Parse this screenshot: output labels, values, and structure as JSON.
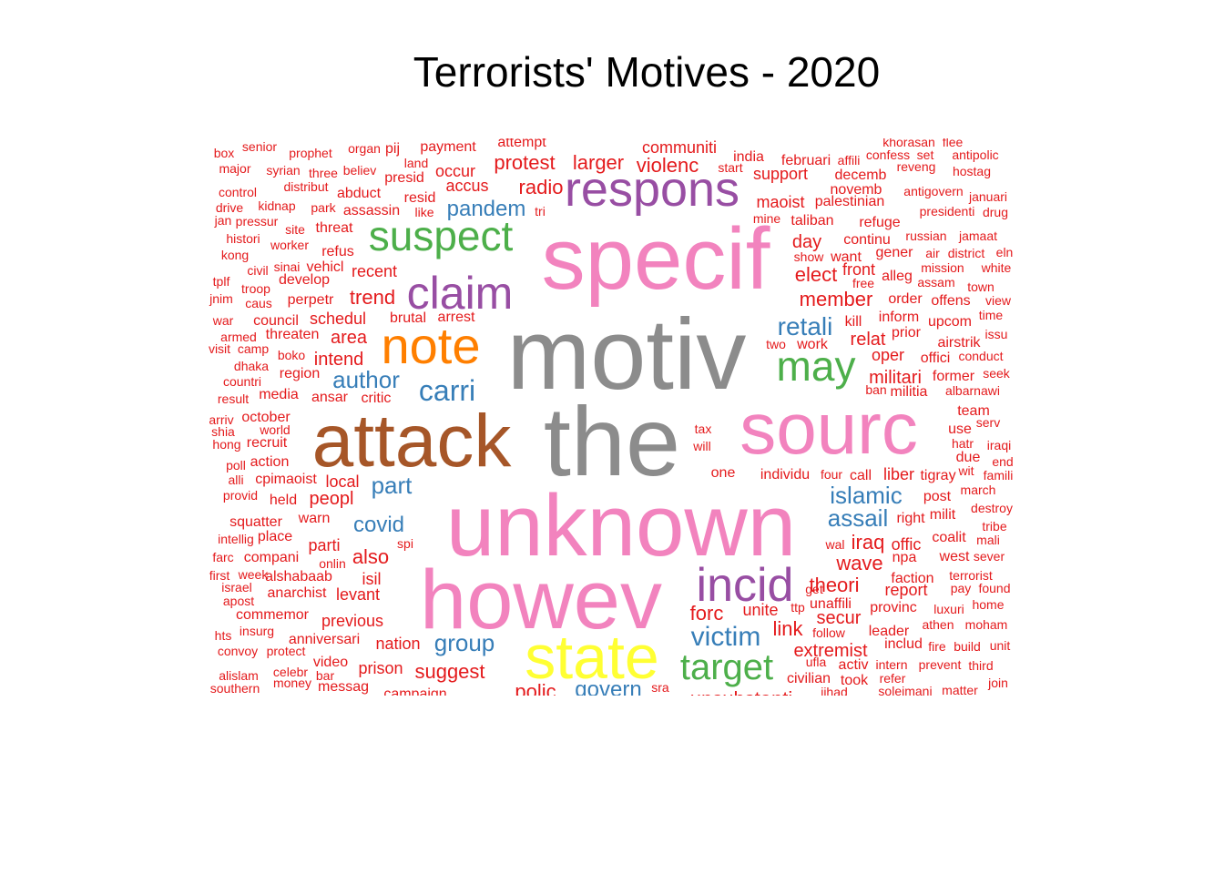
{
  "chart_data": {
    "type": "wordcloud",
    "title": "Terrorists' Motives - 2020",
    "palette": {
      "gray": "#8c8c8c",
      "pink": "#f283be",
      "brown": "#a65628",
      "purple": "#984ea3",
      "green": "#4daf4a",
      "orange": "#ff7f00",
      "blue": "#377eb8",
      "yellow": "#ffff33",
      "red": "#e41a1c"
    },
    "words": [
      {
        "text": "motiv",
        "color": "gray"
      },
      {
        "text": "the",
        "color": "gray"
      },
      {
        "text": "unknown",
        "color": "pink"
      },
      {
        "text": "specif",
        "color": "pink"
      },
      {
        "text": "howev",
        "color": "pink"
      },
      {
        "text": "sourc",
        "color": "pink"
      },
      {
        "text": "attack",
        "color": "brown"
      },
      {
        "text": "state",
        "color": "yellow"
      },
      {
        "text": "respons",
        "color": "purple"
      },
      {
        "text": "claim",
        "color": "purple"
      },
      {
        "text": "incid",
        "color": "purple"
      },
      {
        "text": "suspect",
        "color": "green"
      },
      {
        "text": "may",
        "color": "green"
      },
      {
        "text": "target",
        "color": "green"
      },
      {
        "text": "note",
        "color": "orange"
      },
      {
        "text": "victim",
        "color": "blue"
      },
      {
        "text": "carri",
        "color": "blue"
      },
      {
        "text": "author",
        "color": "blue"
      },
      {
        "text": "retali",
        "color": "blue"
      },
      {
        "text": "islamic",
        "color": "blue"
      },
      {
        "text": "assail",
        "color": "blue"
      },
      {
        "text": "group",
        "color": "blue"
      },
      {
        "text": "pandem",
        "color": "blue"
      },
      {
        "text": "part",
        "color": "blue"
      },
      {
        "text": "covid",
        "color": "blue"
      },
      {
        "text": "govern",
        "color": "blue"
      },
      {
        "text": "protest",
        "color": "red"
      },
      {
        "text": "larger",
        "color": "red"
      },
      {
        "text": "violenc",
        "color": "red"
      },
      {
        "text": "radio",
        "color": "red"
      },
      {
        "text": "trend",
        "color": "red"
      },
      {
        "text": "member",
        "color": "red"
      },
      {
        "text": "elect",
        "color": "red"
      },
      {
        "text": "day",
        "color": "red"
      },
      {
        "text": "militari",
        "color": "red"
      },
      {
        "text": "relat",
        "color": "red"
      },
      {
        "text": "iraq",
        "color": "red"
      },
      {
        "text": "wave",
        "color": "red"
      },
      {
        "text": "theori",
        "color": "red"
      },
      {
        "text": "forc",
        "color": "red"
      },
      {
        "text": "link",
        "color": "red"
      },
      {
        "text": "secur",
        "color": "red"
      },
      {
        "text": "extremist",
        "color": "red"
      },
      {
        "text": "suggest",
        "color": "red"
      },
      {
        "text": "peopl",
        "color": "red"
      },
      {
        "text": "also",
        "color": "red"
      },
      {
        "text": "area",
        "color": "red"
      },
      {
        "text": "intend",
        "color": "red"
      },
      {
        "text": "schedul",
        "color": "red"
      },
      {
        "text": "recent",
        "color": "red"
      },
      {
        "text": "previous",
        "color": "red"
      },
      {
        "text": "parti",
        "color": "red"
      },
      {
        "text": "isil",
        "color": "red"
      },
      {
        "text": "levant",
        "color": "red"
      },
      {
        "text": "local",
        "color": "red"
      },
      {
        "text": "nation",
        "color": "red"
      },
      {
        "text": "prison",
        "color": "red"
      },
      {
        "text": "occur",
        "color": "red"
      },
      {
        "text": "accus",
        "color": "red"
      },
      {
        "text": "support",
        "color": "red"
      },
      {
        "text": "maoist",
        "color": "red"
      },
      {
        "text": "palestinian",
        "color": "red"
      },
      {
        "text": "taliban",
        "color": "red"
      },
      {
        "text": "continu",
        "color": "red"
      },
      {
        "text": "front",
        "color": "red"
      },
      {
        "text": "kill",
        "color": "red"
      },
      {
        "text": "inform",
        "color": "red"
      },
      {
        "text": "oper",
        "color": "red"
      },
      {
        "text": "liber",
        "color": "red"
      },
      {
        "text": "offic",
        "color": "red"
      },
      {
        "text": "npa",
        "color": "red"
      },
      {
        "text": "faction",
        "color": "red"
      },
      {
        "text": "report",
        "color": "red"
      },
      {
        "text": "provinc",
        "color": "red"
      },
      {
        "text": "leader",
        "color": "red"
      },
      {
        "text": "includ",
        "color": "red"
      },
      {
        "text": "unaffili",
        "color": "red"
      },
      {
        "text": "civilian",
        "color": "red"
      },
      {
        "text": "took",
        "color": "red"
      },
      {
        "text": "activ",
        "color": "red"
      },
      {
        "text": "unite",
        "color": "red"
      },
      {
        "text": "individu",
        "color": "red"
      },
      {
        "text": "call",
        "color": "red"
      },
      {
        "text": "tigray",
        "color": "red"
      },
      {
        "text": "post",
        "color": "red"
      },
      {
        "text": "right",
        "color": "red"
      },
      {
        "text": "milit",
        "color": "red"
      },
      {
        "text": "coalit",
        "color": "red"
      },
      {
        "text": "west",
        "color": "red"
      },
      {
        "text": "communiti",
        "color": "red"
      },
      {
        "text": "india",
        "color": "red"
      },
      {
        "text": "februari",
        "color": "red"
      },
      {
        "text": "decemb",
        "color": "red"
      },
      {
        "text": "novemb",
        "color": "red"
      },
      {
        "text": "refuge",
        "color": "red"
      },
      {
        "text": "want",
        "color": "red"
      },
      {
        "text": "gener",
        "color": "red"
      },
      {
        "text": "alleg",
        "color": "red"
      },
      {
        "text": "order",
        "color": "red"
      },
      {
        "text": "offens",
        "color": "red"
      },
      {
        "text": "upcom",
        "color": "red"
      },
      {
        "text": "prior",
        "color": "red"
      },
      {
        "text": "airstrik",
        "color": "red"
      },
      {
        "text": "offici",
        "color": "red"
      },
      {
        "text": "former",
        "color": "red"
      },
      {
        "text": "militia",
        "color": "red"
      },
      {
        "text": "team",
        "color": "red"
      },
      {
        "text": "use",
        "color": "red"
      },
      {
        "text": "due",
        "color": "red"
      },
      {
        "text": "march",
        "color": "red"
      },
      {
        "text": "terrorist",
        "color": "red"
      },
      {
        "text": "pay",
        "color": "red"
      },
      {
        "text": "found",
        "color": "red"
      },
      {
        "text": "home",
        "color": "red"
      },
      {
        "text": "moham",
        "color": "red"
      },
      {
        "text": "athen",
        "color": "red"
      },
      {
        "text": "fire",
        "color": "red"
      },
      {
        "text": "build",
        "color": "red"
      },
      {
        "text": "unit",
        "color": "red"
      },
      {
        "text": "prevent",
        "color": "red"
      },
      {
        "text": "third",
        "color": "red"
      },
      {
        "text": "intern",
        "color": "red"
      },
      {
        "text": "refer",
        "color": "red"
      },
      {
        "text": "soleimani",
        "color": "red"
      },
      {
        "text": "matter",
        "color": "red"
      },
      {
        "text": "join",
        "color": "red"
      },
      {
        "text": "jihad",
        "color": "red"
      },
      {
        "text": "unsubstanti",
        "color": "red"
      },
      {
        "text": "polic",
        "color": "red"
      },
      {
        "text": "sra",
        "color": "red"
      },
      {
        "text": "ufla",
        "color": "red"
      },
      {
        "text": "follow",
        "color": "red"
      },
      {
        "text": "ttp",
        "color": "red"
      },
      {
        "text": "get",
        "color": "red"
      },
      {
        "text": "wal",
        "color": "red"
      },
      {
        "text": "four",
        "color": "red"
      },
      {
        "text": "one",
        "color": "red"
      },
      {
        "text": "tax",
        "color": "red"
      },
      {
        "text": "will",
        "color": "red"
      },
      {
        "text": "two",
        "color": "red"
      },
      {
        "text": "work",
        "color": "red"
      },
      {
        "text": "show",
        "color": "red"
      },
      {
        "text": "free",
        "color": "red"
      },
      {
        "text": "mine",
        "color": "red"
      },
      {
        "text": "start",
        "color": "red"
      },
      {
        "text": "payment",
        "color": "red"
      },
      {
        "text": "attempt",
        "color": "red"
      },
      {
        "text": "land",
        "color": "red"
      },
      {
        "text": "presid",
        "color": "red"
      },
      {
        "text": "resid",
        "color": "red"
      },
      {
        "text": "like",
        "color": "red"
      },
      {
        "text": "abduct",
        "color": "red"
      },
      {
        "text": "assassin",
        "color": "red"
      },
      {
        "text": "threat",
        "color": "red"
      },
      {
        "text": "refus",
        "color": "red"
      },
      {
        "text": "vehicl",
        "color": "red"
      },
      {
        "text": "develop",
        "color": "red"
      },
      {
        "text": "perpetr",
        "color": "red"
      },
      {
        "text": "brutal",
        "color": "red"
      },
      {
        "text": "arrest",
        "color": "red"
      },
      {
        "text": "council",
        "color": "red"
      },
      {
        "text": "threaten",
        "color": "red"
      },
      {
        "text": "boko",
        "color": "red"
      },
      {
        "text": "region",
        "color": "red"
      },
      {
        "text": "ansar",
        "color": "red"
      },
      {
        "text": "critic",
        "color": "red"
      },
      {
        "text": "media",
        "color": "red"
      },
      {
        "text": "october",
        "color": "red"
      },
      {
        "text": "world",
        "color": "red"
      },
      {
        "text": "recruit",
        "color": "red"
      },
      {
        "text": "action",
        "color": "red"
      },
      {
        "text": "cpimaoist",
        "color": "red"
      },
      {
        "text": "held",
        "color": "red"
      },
      {
        "text": "warn",
        "color": "red"
      },
      {
        "text": "squatter",
        "color": "red"
      },
      {
        "text": "place",
        "color": "red"
      },
      {
        "text": "compani",
        "color": "red"
      },
      {
        "text": "spi",
        "color": "red"
      },
      {
        "text": "onlin",
        "color": "red"
      },
      {
        "text": "alshabaab",
        "color": "red"
      },
      {
        "text": "anarchist",
        "color": "red"
      },
      {
        "text": "commemor",
        "color": "red"
      },
      {
        "text": "insurg",
        "color": "red"
      },
      {
        "text": "anniversari",
        "color": "red"
      },
      {
        "text": "protect",
        "color": "red"
      },
      {
        "text": "video",
        "color": "red"
      },
      {
        "text": "celebr",
        "color": "red"
      },
      {
        "text": "bar",
        "color": "red"
      },
      {
        "text": "money",
        "color": "red"
      },
      {
        "text": "messag",
        "color": "red"
      },
      {
        "text": "campaign",
        "color": "red"
      },
      {
        "text": "box",
        "color": "red"
      },
      {
        "text": "senior",
        "color": "red"
      },
      {
        "text": "prophet",
        "color": "red"
      },
      {
        "text": "organ",
        "color": "red"
      },
      {
        "text": "pij",
        "color": "red"
      },
      {
        "text": "major",
        "color": "red"
      },
      {
        "text": "syrian",
        "color": "red"
      },
      {
        "text": "three",
        "color": "red"
      },
      {
        "text": "believ",
        "color": "red"
      },
      {
        "text": "distribut",
        "color": "red"
      },
      {
        "text": "control",
        "color": "red"
      },
      {
        "text": "drive",
        "color": "red"
      },
      {
        "text": "kidnap",
        "color": "red"
      },
      {
        "text": "park",
        "color": "red"
      },
      {
        "text": "jan",
        "color": "red"
      },
      {
        "text": "pressur",
        "color": "red"
      },
      {
        "text": "site",
        "color": "red"
      },
      {
        "text": "histori",
        "color": "red"
      },
      {
        "text": "worker",
        "color": "red"
      },
      {
        "text": "kong",
        "color": "red"
      },
      {
        "text": "civil",
        "color": "red"
      },
      {
        "text": "sinai",
        "color": "red"
      },
      {
        "text": "tplf",
        "color": "red"
      },
      {
        "text": "troop",
        "color": "red"
      },
      {
        "text": "jnim",
        "color": "red"
      },
      {
        "text": "caus",
        "color": "red"
      },
      {
        "text": "war",
        "color": "red"
      },
      {
        "text": "armed",
        "color": "red"
      },
      {
        "text": "visit",
        "color": "red"
      },
      {
        "text": "camp",
        "color": "red"
      },
      {
        "text": "dhaka",
        "color": "red"
      },
      {
        "text": "countri",
        "color": "red"
      },
      {
        "text": "result",
        "color": "red"
      },
      {
        "text": "arriv",
        "color": "red"
      },
      {
        "text": "shia",
        "color": "red"
      },
      {
        "text": "hong",
        "color": "red"
      },
      {
        "text": "poll",
        "color": "red"
      },
      {
        "text": "alli",
        "color": "red"
      },
      {
        "text": "provid",
        "color": "red"
      },
      {
        "text": "intellig",
        "color": "red"
      },
      {
        "text": "farc",
        "color": "red"
      },
      {
        "text": "first",
        "color": "red"
      },
      {
        "text": "week",
        "color": "red"
      },
      {
        "text": "israel",
        "color": "red"
      },
      {
        "text": "apost",
        "color": "red"
      },
      {
        "text": "hts",
        "color": "red"
      },
      {
        "text": "convoy",
        "color": "red"
      },
      {
        "text": "alislam",
        "color": "red"
      },
      {
        "text": "southern",
        "color": "red"
      },
      {
        "text": "tri",
        "color": "red"
      },
      {
        "text": "khorasan",
        "color": "red"
      },
      {
        "text": "flee",
        "color": "red"
      },
      {
        "text": "affili",
        "color": "red"
      },
      {
        "text": "confess",
        "color": "red"
      },
      {
        "text": "set",
        "color": "red"
      },
      {
        "text": "antipolic",
        "color": "red"
      },
      {
        "text": "reveng",
        "color": "red"
      },
      {
        "text": "hostag",
        "color": "red"
      },
      {
        "text": "antigovern",
        "color": "red"
      },
      {
        "text": "januari",
        "color": "red"
      },
      {
        "text": "presidenti",
        "color": "red"
      },
      {
        "text": "drug",
        "color": "red"
      },
      {
        "text": "russian",
        "color": "red"
      },
      {
        "text": "jamaat",
        "color": "red"
      },
      {
        "text": "air",
        "color": "red"
      },
      {
        "text": "district",
        "color": "red"
      },
      {
        "text": "eln",
        "color": "red"
      },
      {
        "text": "mission",
        "color": "red"
      },
      {
        "text": "white",
        "color": "red"
      },
      {
        "text": "assam",
        "color": "red"
      },
      {
        "text": "town",
        "color": "red"
      },
      {
        "text": "view",
        "color": "red"
      },
      {
        "text": "time",
        "color": "red"
      },
      {
        "text": "issu",
        "color": "red"
      },
      {
        "text": "conduct",
        "color": "red"
      },
      {
        "text": "seek",
        "color": "red"
      },
      {
        "text": "ban",
        "color": "red"
      },
      {
        "text": "albarnawi",
        "color": "red"
      },
      {
        "text": "serv",
        "color": "red"
      },
      {
        "text": "hatr",
        "color": "red"
      },
      {
        "text": "iraqi",
        "color": "red"
      },
      {
        "text": "end",
        "color": "red"
      },
      {
        "text": "wit",
        "color": "red"
      },
      {
        "text": "famili",
        "color": "red"
      },
      {
        "text": "destroy",
        "color": "red"
      },
      {
        "text": "tribe",
        "color": "red"
      },
      {
        "text": "mali",
        "color": "red"
      },
      {
        "text": "sever",
        "color": "red"
      },
      {
        "text": "luxuri",
        "color": "red"
      }
    ]
  }
}
